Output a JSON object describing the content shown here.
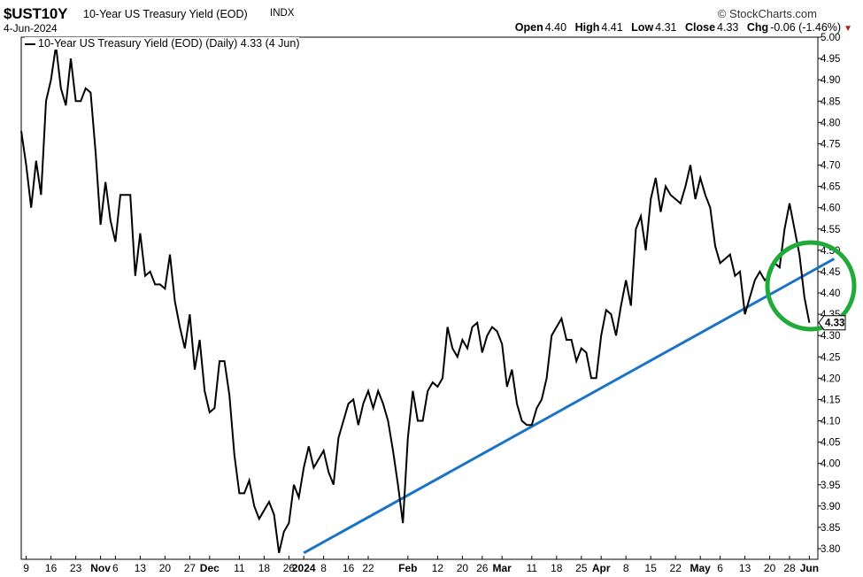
{
  "header": {
    "symbol": "$UST10Y",
    "name": "10-Year US Treasury Yield (EOD)",
    "exchange": "INDX",
    "date": "4-Jun-2024",
    "brand": "© StockCharts.com",
    "open_label": "Open",
    "open": "4.40",
    "high_label": "High",
    "high": "4.41",
    "low_label": "Low",
    "low": "4.31",
    "close_label": "Close",
    "close": "4.33",
    "chg_label": "Chg",
    "chg": "-0.06 (-1.46%)"
  },
  "legend": {
    "text": "10-Year US Treasury Yield (EOD) (Daily) 4.33 (4 Jun)"
  },
  "colors": {
    "price_line": "#000000",
    "trendline": "#1a73c8",
    "highlight_circle": "#1faa3a",
    "change_arrow": "#b01b1b"
  },
  "chart_data": {
    "type": "line",
    "ylim": [
      3.78,
      5.0
    ],
    "yticks": [
      "3.80",
      "3.85",
      "3.90",
      "3.95",
      "4.00",
      "4.05",
      "4.10",
      "4.15",
      "4.20",
      "4.25",
      "4.30",
      "4.35",
      "4.40",
      "4.45",
      "4.50",
      "4.55",
      "4.60",
      "4.65",
      "4.70",
      "4.75",
      "4.80",
      "4.85",
      "4.90",
      "4.95",
      "5.00"
    ],
    "last_value_label": "4.33",
    "xticks": [
      {
        "label": "9",
        "i": 1
      },
      {
        "label": "16",
        "i": 6
      },
      {
        "label": "23",
        "i": 11
      },
      {
        "label": "Nov",
        "i": 16,
        "bold": true
      },
      {
        "label": "6",
        "i": 19
      },
      {
        "label": "13",
        "i": 24
      },
      {
        "label": "20",
        "i": 29
      },
      {
        "label": "27",
        "i": 34
      },
      {
        "label": "Dec",
        "i": 38,
        "bold": true
      },
      {
        "label": "11",
        "i": 44
      },
      {
        "label": "18",
        "i": 49
      },
      {
        "label": "26",
        "i": 54
      },
      {
        "label": "2024",
        "i": 57,
        "bold": true
      },
      {
        "label": "8",
        "i": 61
      },
      {
        "label": "16",
        "i": 66
      },
      {
        "label": "22",
        "i": 70
      },
      {
        "label": "Feb",
        "i": 78,
        "bold": true
      },
      {
        "label": "12",
        "i": 84
      },
      {
        "label": "20",
        "i": 89
      },
      {
        "label": "26",
        "i": 93
      },
      {
        "label": "Mar",
        "i": 97,
        "bold": true
      },
      {
        "label": "11",
        "i": 103
      },
      {
        "label": "18",
        "i": 108
      },
      {
        "label": "25",
        "i": 113
      },
      {
        "label": "Apr",
        "i": 117,
        "bold": true
      },
      {
        "label": "8",
        "i": 122
      },
      {
        "label": "15",
        "i": 127
      },
      {
        "label": "22",
        "i": 132
      },
      {
        "label": "May",
        "i": 137,
        "bold": true
      },
      {
        "label": "6",
        "i": 141
      },
      {
        "label": "13",
        "i": 146
      },
      {
        "label": "20",
        "i": 151
      },
      {
        "label": "28",
        "i": 155
      },
      {
        "label": "Jun",
        "i": 159,
        "bold": true
      }
    ],
    "values": [
      4.78,
      4.7,
      4.6,
      4.71,
      4.63,
      4.85,
      4.9,
      4.98,
      4.88,
      4.84,
      4.95,
      4.85,
      4.85,
      4.88,
      4.87,
      4.73,
      4.56,
      4.66,
      4.57,
      4.52,
      4.63,
      4.63,
      4.63,
      4.44,
      4.54,
      4.44,
      4.45,
      4.42,
      4.42,
      4.41,
      4.49,
      4.38,
      4.32,
      4.27,
      4.35,
      4.22,
      4.29,
      4.17,
      4.12,
      4.13,
      4.24,
      4.24,
      4.16,
      4.02,
      3.93,
      3.93,
      3.96,
      3.9,
      3.87,
      3.89,
      3.91,
      3.88,
      3.79,
      3.84,
      3.86,
      3.95,
      3.92,
      3.99,
      4.04,
      3.99,
      4.01,
      4.03,
      3.98,
      3.95,
      4.06,
      4.1,
      4.14,
      4.15,
      4.09,
      4.14,
      4.17,
      4.13,
      4.17,
      4.14,
      4.1,
      4.03,
      3.95,
      3.86,
      4.06,
      4.17,
      4.1,
      4.1,
      4.17,
      4.19,
      4.18,
      4.2,
      4.32,
      4.27,
      4.25,
      4.29,
      4.27,
      4.32,
      4.33,
      4.26,
      4.3,
      4.32,
      4.31,
      4.28,
      4.18,
      4.22,
      4.14,
      4.1,
      4.09,
      4.09,
      4.13,
      4.15,
      4.2,
      4.3,
      4.32,
      4.34,
      4.29,
      4.29,
      4.24,
      4.27,
      4.26,
      4.2,
      4.2,
      4.3,
      4.36,
      4.35,
      4.3,
      4.37,
      4.43,
      4.37,
      4.55,
      4.58,
      4.5,
      4.62,
      4.67,
      4.59,
      4.65,
      4.63,
      4.62,
      4.61,
      4.65,
      4.7,
      4.62,
      4.67,
      4.63,
      4.6,
      4.51,
      4.47,
      4.48,
      4.49,
      4.44,
      4.45,
      4.35,
      4.39,
      4.43,
      4.45,
      4.43,
      4.44,
      4.47,
      4.46,
      4.55,
      4.61,
      4.55,
      4.49,
      4.39,
      4.33
    ],
    "trendline": {
      "from": {
        "i": 57,
        "value": 3.79
      },
      "to": {
        "i": 164,
        "value": 4.48
      }
    }
  }
}
